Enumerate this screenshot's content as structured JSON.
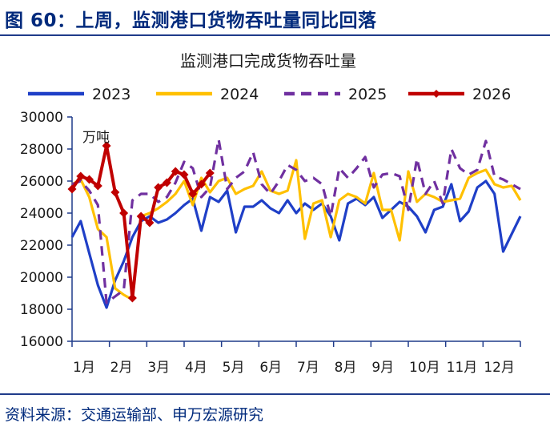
{
  "figure_title": "图 60：上周，监测港口货物吞吐量同比回落",
  "source": "资料来源：交通运输部、申万宏源研究",
  "colors": {
    "2023": "#1f3fc7",
    "2024": "#ffc000",
    "2025": "#7030a0",
    "2026": "#c00000",
    "axis": "#1f3b8a",
    "text": "#002a7c"
  },
  "chart_data": {
    "type": "line",
    "title": "监测港口完成货物吞吐量",
    "unit_label": "万吨",
    "xlabel": "",
    "ylabel": "",
    "ylim": [
      16000,
      30000
    ],
    "yticks": [
      16000,
      18000,
      20000,
      22000,
      24000,
      26000,
      28000,
      30000
    ],
    "x_unit": "week",
    "x_range": [
      1,
      53
    ],
    "months": [
      "1月",
      "2月",
      "3月",
      "4月",
      "5月",
      "6月",
      "7月",
      "8月",
      "9月",
      "10月",
      "11月",
      "12月"
    ],
    "legend_position": "top",
    "grid": false,
    "series": [
      {
        "name": "2023",
        "style": "solid",
        "marker": "none",
        "color": "#1f3fc7",
        "x": [
          1,
          2,
          3,
          4,
          5,
          6,
          7,
          8,
          9,
          10,
          11,
          12,
          13,
          14,
          15,
          16,
          17,
          18,
          19,
          20,
          21,
          22,
          23,
          24,
          25,
          26,
          27,
          28,
          29,
          30,
          31,
          32,
          33,
          34,
          35,
          36,
          37,
          38,
          39,
          40,
          41,
          42,
          43,
          44,
          45,
          46,
          47,
          48,
          49,
          50,
          51,
          52,
          53
        ],
        "y": [
          22500,
          23500,
          21500,
          19500,
          18100,
          19800,
          21000,
          22500,
          23500,
          23800,
          23400,
          23600,
          24000,
          24500,
          24900,
          22900,
          25000,
          24700,
          25400,
          22800,
          24400,
          24400,
          24800,
          24300,
          24000,
          24800,
          24000,
          24600,
          24200,
          24600,
          23800,
          22300,
          24600,
          24900,
          24500,
          25000,
          23700,
          24200,
          24700,
          24400,
          23800,
          22800,
          24200,
          24400,
          25800,
          23500,
          24100,
          25600,
          26000,
          25200,
          21600,
          22700,
          23800
        ]
      },
      {
        "name": "2024",
        "style": "solid",
        "marker": "none",
        "color": "#ffc000",
        "x": [
          1,
          2,
          3,
          4,
          5,
          6,
          7,
          8,
          9,
          10,
          11,
          12,
          13,
          14,
          15,
          16,
          17,
          18,
          19,
          20,
          21,
          22,
          23,
          24,
          25,
          26,
          27,
          28,
          29,
          30,
          31,
          32,
          33,
          34,
          35,
          36,
          37,
          38,
          39,
          40,
          41,
          42,
          43,
          44,
          45,
          46,
          47,
          48,
          49,
          50,
          51,
          52,
          53
        ],
        "y": [
          25800,
          26100,
          25000,
          23000,
          22500,
          19300,
          18900,
          18600,
          23800,
          24000,
          24300,
          24700,
          25200,
          26000,
          24500,
          26200,
          25300,
          26000,
          26200,
          25200,
          25500,
          25700,
          26600,
          25400,
          25200,
          25400,
          27300,
          22400,
          24600,
          24800,
          22500,
          24800,
          25200,
          25000,
          24600,
          26500,
          24200,
          24200,
          22300,
          26600,
          24700,
          25200,
          25000,
          24700,
          24800,
          24900,
          26200,
          26500,
          26700,
          25800,
          25600,
          25700,
          24800
        ]
      },
      {
        "name": "2025",
        "style": "dashed",
        "marker": "none",
        "color": "#7030a0",
        "x": [
          1,
          2,
          3,
          4,
          5,
          6,
          7,
          8,
          9,
          10,
          11,
          12,
          13,
          14,
          15,
          16,
          17,
          18,
          19,
          20,
          21,
          22,
          23,
          24,
          25,
          26,
          27,
          28,
          29,
          30,
          31,
          32,
          33,
          34,
          35,
          36,
          37,
          38,
          39,
          40,
          41,
          42,
          43,
          44,
          45,
          46,
          47,
          48,
          49,
          50,
          51,
          52,
          53
        ],
        "y": [
          25800,
          26000,
          25400,
          24500,
          18400,
          18800,
          19200,
          24800,
          25200,
          25200,
          24700,
          25000,
          25900,
          27200,
          26800,
          25000,
          25600,
          28600,
          25500,
          26200,
          26600,
          27800,
          25800,
          25200,
          26000,
          27000,
          26700,
          26000,
          26200,
          25800,
          23800,
          26800,
          26200,
          26800,
          27500,
          25600,
          26400,
          26500,
          26300,
          24200,
          27400,
          25200,
          26000,
          24600,
          28000,
          26800,
          26400,
          26700,
          28500,
          26300,
          26100,
          25800,
          25500
        ]
      },
      {
        "name": "2026",
        "style": "solid",
        "marker": "diamond",
        "color": "#c00000",
        "x": [
          1,
          2,
          3,
          4,
          5,
          6,
          7,
          8,
          9,
          10,
          11,
          12,
          13,
          14,
          15,
          16,
          17
        ],
        "y": [
          25500,
          26300,
          26100,
          25700,
          28200,
          25300,
          24000,
          18700,
          23800,
          23400,
          25600,
          25900,
          26600,
          26400,
          25200,
          25800,
          26500
        ]
      }
    ]
  }
}
